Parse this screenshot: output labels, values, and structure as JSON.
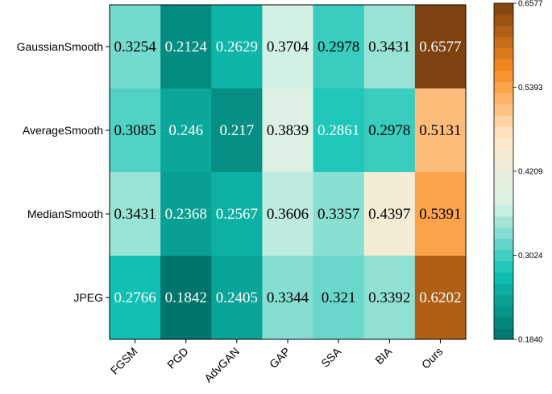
{
  "chart_data": {
    "type": "heatmap",
    "title": "",
    "xlabel": "",
    "ylabel": "",
    "x_categories": [
      "FGSM",
      "PGD",
      "AdvGAN",
      "GAP",
      "SSA",
      "BIA",
      "Ours"
    ],
    "y_categories": [
      "GaussianSmooth",
      "AverageSmooth",
      "MedianSmooth",
      "JPEG"
    ],
    "values": [
      [
        0.3254,
        0.2124,
        0.2629,
        0.3704,
        0.2978,
        0.3431,
        0.6577
      ],
      [
        0.3085,
        0.246,
        0.217,
        0.3839,
        0.2861,
        0.2978,
        0.5131
      ],
      [
        0.3431,
        0.2368,
        0.2567,
        0.3606,
        0.3357,
        0.4397,
        0.5391
      ],
      [
        0.2766,
        0.1842,
        0.2405,
        0.3344,
        0.321,
        0.3392,
        0.6202
      ]
    ],
    "value_labels": [
      [
        "0.3254",
        "0.2124",
        "0.2629",
        "0.3704",
        "0.2978",
        "0.3431",
        "0.6577"
      ],
      [
        "0.3085",
        "0.246",
        "0.217",
        "0.3839",
        "0.2861",
        "0.2978",
        "0.5131"
      ],
      [
        "0.3431",
        "0.2368",
        "0.2567",
        "0.3606",
        "0.3357",
        "0.4397",
        "0.5391"
      ],
      [
        "0.2766",
        "0.1842",
        "0.2405",
        "0.3344",
        "0.321",
        "0.3392",
        "0.6202"
      ]
    ],
    "colorbar": {
      "min": 0.184,
      "max": 0.6577,
      "tick_values": [
        0.184,
        0.3024,
        0.4209,
        0.5393,
        0.6577
      ],
      "tick_labels": [
        "0.1840",
        "0.3024",
        "0.4209",
        "0.5393",
        "0.6577"
      ],
      "color_stops": [
        "#00756b",
        "#11c2b5",
        "#d8f2e6",
        "#ffe9cc",
        "#fb8b1e",
        "#7d4210"
      ]
    },
    "legend": "right"
  }
}
